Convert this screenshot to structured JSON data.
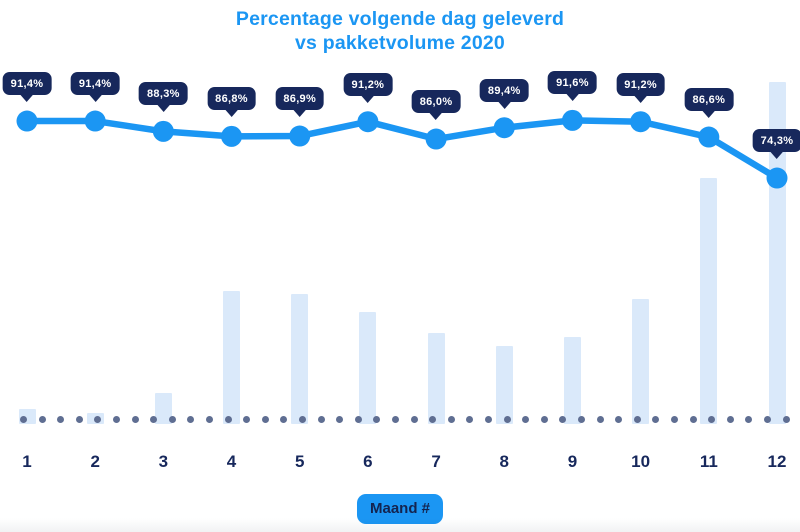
{
  "title": {
    "line1": "Percentage volgende dag geleverd",
    "line2": "vs pakketvolume 2020"
  },
  "x_axis": {
    "title_badge": "Maand #"
  },
  "chart_data": {
    "type": "combo",
    "title": "Percentage volgende dag geleverd vs pakketvolume 2020",
    "xlabel": "Maand #",
    "ylabel": "",
    "categories": [
      "1",
      "2",
      "3",
      "4",
      "5",
      "6",
      "7",
      "8",
      "9",
      "10",
      "11",
      "12"
    ],
    "series": [
      {
        "name": "Percentage volgende dag geleverd",
        "type": "line",
        "unit": "%",
        "values": [
          91.4,
          91.4,
          88.3,
          86.8,
          86.9,
          91.2,
          86.0,
          89.4,
          91.6,
          91.2,
          86.6,
          74.3
        ],
        "point_labels": [
          "91,4%",
          "91,4%",
          "88,3%",
          "86,8%",
          "86,9%",
          "91,2%",
          "86,0%",
          "89,4%",
          "91,6%",
          "91,2%",
          "86,6%",
          "74,3%"
        ]
      },
      {
        "name": "Pakketvolume 2020",
        "type": "bar",
        "unit": "relative volume (tallest month = 100)",
        "values": [
          4.4,
          3.2,
          9.1,
          38.9,
          38.0,
          32.7,
          26.6,
          22.8,
          25.4,
          36.5,
          71.9,
          100
        ]
      }
    ],
    "y_axis_visible": false,
    "grid": false,
    "legend": "none",
    "baseline_style": "dotted"
  },
  "colors": {
    "accent_blue": "#1b96f3",
    "badge_navy": "#17285c",
    "bar_fill": "#dae9fa",
    "baseline_dot_gray": "#5f6e92",
    "axis_label_navy": "#17285c",
    "background": "#ffffff",
    "badge_text": "#ffffff"
  }
}
